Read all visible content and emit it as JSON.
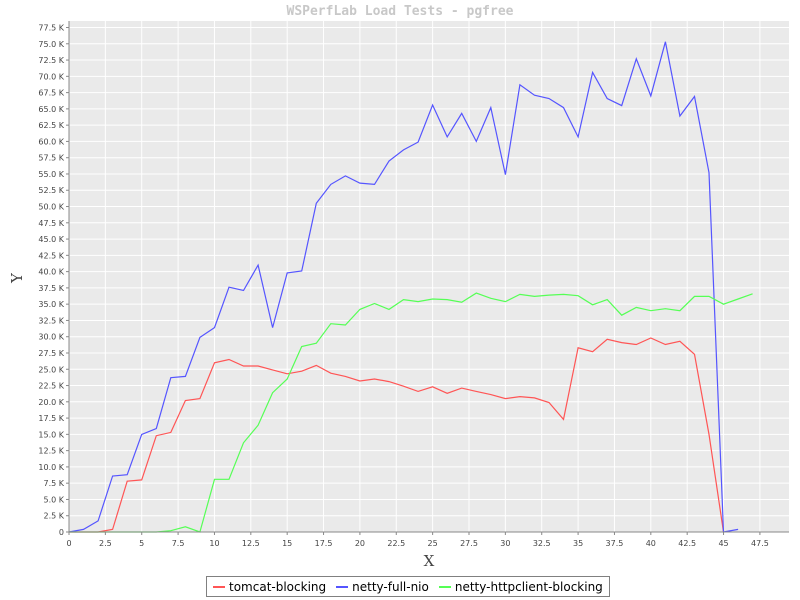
{
  "chart_data": {
    "type": "line",
    "title": "WSPerfLab Load Tests - pgfree",
    "xlabel": "X",
    "ylabel": "Y",
    "xlim": [
      0,
      49.5
    ],
    "ylim": [
      0,
      78500
    ],
    "x_ticks": [
      0,
      2.5,
      5,
      7.5,
      10,
      12.5,
      15,
      17.5,
      20,
      22.5,
      25,
      27.5,
      30,
      32.5,
      35,
      37.5,
      40,
      42.5,
      45,
      47.5
    ],
    "x_tick_labels": [
      "0",
      "2.5",
      "5",
      "7.5",
      "10",
      "12.5",
      "15",
      "17.5",
      "20",
      "22.5",
      "25",
      "27.5",
      "30",
      "32.5",
      "35",
      "37.5",
      "40",
      "42.5",
      "45",
      "47.5"
    ],
    "y_ticks": [
      0,
      2500,
      5000,
      7500,
      10000,
      12500,
      15000,
      17500,
      20000,
      22500,
      25000,
      27500,
      30000,
      32500,
      35000,
      37500,
      40000,
      42500,
      45000,
      47500,
      50000,
      52500,
      55000,
      57500,
      60000,
      62500,
      65000,
      67500,
      70000,
      72500,
      75000,
      77500
    ],
    "y_tick_labels": [
      "0",
      "2.5 K",
      "5.0 K",
      "7.5 K",
      "10.0 K",
      "12.5 K",
      "15.0 K",
      "17.5 K",
      "20.0 K",
      "22.5 K",
      "25.0 K",
      "27.5 K",
      "30.0 K",
      "32.5 K",
      "35.0 K",
      "37.5 K",
      "40.0 K",
      "42.5 K",
      "45.0 K",
      "47.5 K",
      "50.0 K",
      "52.5 K",
      "55.0 K",
      "57.5 K",
      "60.0 K",
      "62.5 K",
      "65.0 K",
      "67.5 K",
      "70.0 K",
      "72.5 K",
      "75.0 K",
      "77.5 K"
    ],
    "grid": true,
    "legend_position": "bottom",
    "series": [
      {
        "name": "tomcat-blocking",
        "color": "#ff5555",
        "x": [
          0,
          1,
          2,
          3,
          4,
          5,
          6,
          7,
          8,
          9,
          10,
          11,
          12,
          13,
          14,
          15,
          16,
          17,
          18,
          19,
          20,
          21,
          22,
          23,
          24,
          25,
          26,
          27,
          28,
          29,
          30,
          31,
          32,
          33,
          34,
          35,
          36,
          37,
          38,
          39,
          40,
          41,
          42,
          43,
          44,
          45
        ],
        "y": [
          0,
          0,
          0,
          400,
          7800,
          8000,
          14800,
          15300,
          20200,
          20500,
          26000,
          26500,
          25500,
          25500,
          24900,
          24300,
          24700,
          25600,
          24400,
          23900,
          23200,
          23500,
          23100,
          22400,
          21600,
          22300,
          21300,
          22100,
          21600,
          21100,
          20500,
          20800,
          20600,
          19900,
          17300,
          28300,
          27700,
          29600,
          29100,
          28800,
          29800,
          28800,
          29300,
          27300,
          15000,
          0
        ]
      },
      {
        "name": "netty-full-nio",
        "color": "#5555ff",
        "x": [
          0,
          1,
          2,
          3,
          4,
          5,
          6,
          7,
          8,
          9,
          10,
          11,
          12,
          13,
          14,
          15,
          16,
          17,
          18,
          19,
          20,
          21,
          22,
          23,
          24,
          25,
          26,
          27,
          28,
          29,
          30,
          31,
          32,
          33,
          34,
          35,
          36,
          37,
          38,
          39,
          40,
          41,
          42,
          43,
          44,
          45,
          46
        ],
        "y": [
          0,
          400,
          1700,
          8600,
          8800,
          15000,
          15900,
          23700,
          23900,
          29900,
          31400,
          37600,
          37100,
          41000,
          31400,
          39800,
          40100,
          50500,
          53400,
          54700,
          53600,
          53400,
          57000,
          58700,
          59900,
          65600,
          60700,
          64300,
          60000,
          65200,
          54900,
          68700,
          67100,
          66600,
          65200,
          60700,
          70600,
          66600,
          65500,
          72700,
          67000,
          75300,
          63900,
          66900,
          55200,
          0,
          400
        ]
      },
      {
        "name": "netty-httpclient-blocking",
        "color": "#55ff55",
        "x": [
          0,
          1,
          2,
          3,
          4,
          5,
          6,
          7,
          8,
          9,
          10,
          11,
          12,
          13,
          14,
          15,
          16,
          17,
          18,
          19,
          20,
          21,
          22,
          23,
          24,
          25,
          26,
          27,
          28,
          29,
          30,
          31,
          32,
          33,
          34,
          35,
          36,
          37,
          38,
          39,
          40,
          41,
          42,
          43,
          44,
          45,
          46,
          47
        ],
        "y": [
          0,
          0,
          0,
          0,
          0,
          0,
          0,
          200,
          800,
          0,
          8100,
          8100,
          13700,
          16400,
          21400,
          23500,
          28500,
          29000,
          32000,
          31800,
          34200,
          35100,
          34200,
          35700,
          35400,
          35800,
          35700,
          35300,
          36700,
          35900,
          35400,
          36500,
          36200,
          36400,
          36500,
          36300,
          34900,
          35700,
          33300,
          34500,
          34000,
          34300,
          34000,
          36200,
          36200,
          35000,
          35800,
          36600
        ]
      }
    ]
  }
}
